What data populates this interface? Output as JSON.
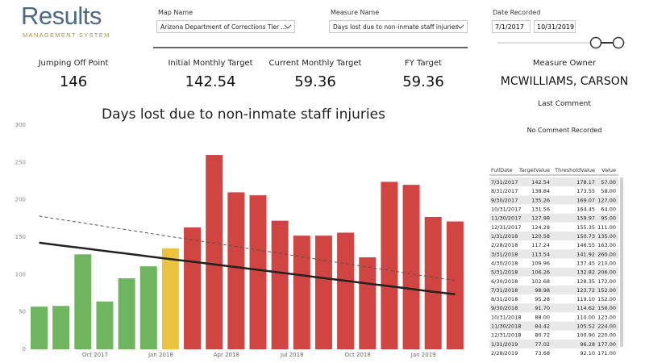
{
  "header": {
    "logo": "Results",
    "logo_subtitle": "MANAGEMENT SYSTEM"
  },
  "filters": {
    "map_name": {
      "label": "Map Name",
      "value": "Arizona Department of Corrections Tier ..."
    },
    "measure_name": {
      "label": "Measure Name",
      "value": "Days lost due to non-inmate staff injuries"
    },
    "date_recorded": {
      "label": "Date Recorded",
      "start": "7/1/2017",
      "end": "10/31/2019"
    }
  },
  "kpis": [
    {
      "label": "Jumping Off Point",
      "value": "146"
    },
    {
      "label": "Initial Monthly Target",
      "value": "142.54"
    },
    {
      "label": "Current Monthly Target",
      "value": "59.36"
    },
    {
      "label": "FY Target",
      "value": "59.36"
    }
  ],
  "owner": {
    "label": "Measure Owner",
    "value": "MCWILLIAMS, CARSON",
    "comment_label": "Last Comment",
    "comment": "No Comment Recorded"
  },
  "chart": {
    "type": "bar",
    "title": "Days lost due to non-inmate staff injuries",
    "values": [
      57,
      58,
      127,
      64,
      95,
      111,
      135,
      163,
      260,
      210,
      206,
      172,
      152,
      152,
      156,
      123,
      224,
      220,
      177,
      171
    ],
    "colors": [
      "#6fb55f",
      "#6fb55f",
      "#6fb55f",
      "#6fb55f",
      "#6fb55f",
      "#6fb55f",
      "#ecc33e",
      "#d04541",
      "#d04541",
      "#d04541",
      "#d04541",
      "#d04541",
      "#d04541",
      "#d04541",
      "#d04541",
      "#d04541",
      "#d04541",
      "#d04541",
      "#d04541",
      "#d04541"
    ],
    "lines": [
      {
        "color": "#222222",
        "dashed": false,
        "values": [
          142.54,
          138.84,
          135.26,
          131.56,
          127.98,
          124.28,
          120.58,
          117.24,
          113.54,
          109.96,
          106.26,
          102.68,
          98.98,
          95.28,
          91.7,
          88.0,
          84.42,
          80.72,
          77.02,
          73.68
        ]
      },
      {
        "color": "#555555",
        "dashed": true,
        "values": [
          178.17,
          173.55,
          169.07,
          164.45,
          159.97,
          155.35,
          150.73,
          146.55,
          141.92,
          137.45,
          132.82,
          128.35,
          123.72,
          119.1,
          114.62,
          110.0,
          105.52,
          100.9,
          96.28,
          92.1
        ]
      }
    ],
    "xticks": [
      {
        "value": 3,
        "label": "Oct 2017"
      },
      {
        "value": 6,
        "label": "Jan 2018"
      },
      {
        "value": 9,
        "label": "Apr 2018"
      },
      {
        "value": 12,
        "label": "Jul 2018"
      },
      {
        "value": 15,
        "label": "Oct 2018"
      },
      {
        "value": 18,
        "label": "Jan 2019"
      }
    ],
    "ylim": [
      0,
      300
    ],
    "yticks": [
      0,
      50,
      100,
      150,
      200,
      250,
      300
    ]
  },
  "table": {
    "columns": [
      "FullDate",
      "TargetValue",
      "ThresholdValue",
      "Value"
    ],
    "rows": [
      [
        "7/31/2017",
        "142.54",
        "178.17",
        "57.00"
      ],
      [
        "8/31/2017",
        "138.84",
        "173.55",
        "58.00"
      ],
      [
        "9/30/2017",
        "135.26",
        "169.07",
        "127.00"
      ],
      [
        "10/31/2017",
        "131.56",
        "164.45",
        "64.00"
      ],
      [
        "11/30/2017",
        "127.98",
        "159.97",
        "95.00"
      ],
      [
        "12/31/2017",
        "124.28",
        "155.35",
        "111.00"
      ],
      [
        "1/31/2018",
        "120.58",
        "150.73",
        "135.00"
      ],
      [
        "2/28/2018",
        "117.24",
        "146.55",
        "163.00"
      ],
      [
        "3/31/2018",
        "113.54",
        "141.92",
        "260.00"
      ],
      [
        "4/30/2018",
        "109.96",
        "137.45",
        "210.00"
      ],
      [
        "5/31/2018",
        "106.26",
        "132.82",
        "206.00"
      ],
      [
        "6/30/2018",
        "102.68",
        "128.35",
        "172.00"
      ],
      [
        "7/31/2018",
        "98.98",
        "123.72",
        "152.00"
      ],
      [
        "8/31/2018",
        "95.28",
        "119.10",
        "152.00"
      ],
      [
        "9/30/2018",
        "91.70",
        "114.62",
        "156.00"
      ],
      [
        "10/31/2018",
        "88.00",
        "110.00",
        "123.00"
      ],
      [
        "11/30/2018",
        "84.42",
        "105.52",
        "224.00"
      ],
      [
        "12/31/2018",
        "80.72",
        "100.90",
        "220.00"
      ],
      [
        "1/31/2019",
        "77.02",
        "96.28",
        "177.00"
      ],
      [
        "2/28/2019",
        "73.68",
        "92.10",
        "171.00"
      ]
    ]
  }
}
